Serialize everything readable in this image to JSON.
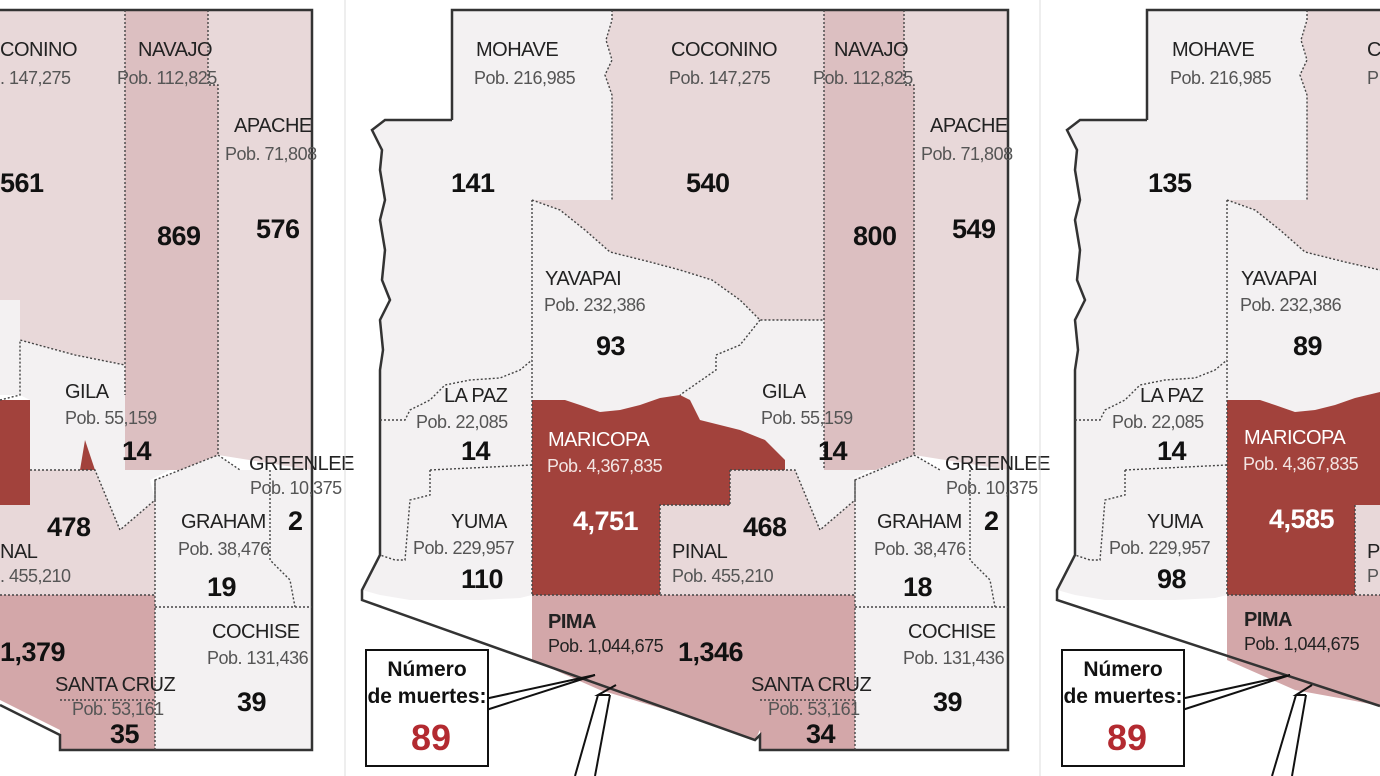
{
  "colors": {
    "very_light": "#f3f1f2",
    "light": "#e8d8d9",
    "medium": "#dcbfc1",
    "pima": "#d3a7a9",
    "maricopa": "#a2423c",
    "number_red": "#b32a30"
  },
  "counties": {
    "mohave": {
      "name": "MOHAVE",
      "pop": "Pob. 216,985"
    },
    "coconino": {
      "name": "COCONINO",
      "pop": "Pob. 147,275"
    },
    "navajo": {
      "name": "NAVAJO",
      "pop": "Pob. 112,825"
    },
    "apache": {
      "name": "APACHE",
      "pop": "Pob. 71,808"
    },
    "yavapai": {
      "name": "YAVAPAI",
      "pop": "Pob. 232,386"
    },
    "lapaz": {
      "name": "LA PAZ",
      "pop": "Pob. 22,085"
    },
    "gila": {
      "name": "GILA",
      "pop": "Pob. 55,159"
    },
    "maricopa": {
      "name": "MARICOPA",
      "pop": "Pob. 4,367,835"
    },
    "greenlee": {
      "name": "GREENLEE",
      "pop": "Pob. 10,375"
    },
    "yuma": {
      "name": "YUMA",
      "pop": "Pob. 229,957"
    },
    "graham": {
      "name": "GRAHAM",
      "pop": "Pob. 38,476"
    },
    "pinal": {
      "name": "PINAL",
      "pop": "Pob. 455,210"
    },
    "pima": {
      "name": "PIMA",
      "pop": "Pob. 1,044,675"
    },
    "cochise": {
      "name": "COCHISE",
      "pop": "Pob. 131,436"
    },
    "santacruz": {
      "name": "SANTA CRUZ",
      "pop": "Pob. 53,161"
    }
  },
  "panels": [
    {
      "deaths": {
        "coconino": "561",
        "navajo": "869",
        "apache": "576",
        "gila": "14",
        "greenlee": "2",
        "graham": "19",
        "pinal": "478",
        "pima": "1,379",
        "cochise": "39",
        "santacruz": "35"
      },
      "partial_labels": {
        "coconino": "CONINO",
        "coconino_pop": ". 147,275",
        "pinal": "NAL",
        "pinal_pop": ". 455,210"
      }
    },
    {
      "deaths": {
        "mohave": "141",
        "coconino": "540",
        "navajo": "800",
        "apache": "549",
        "yavapai": "93",
        "lapaz": "14",
        "gila": "14",
        "maricopa": "4,751",
        "greenlee": "2",
        "yuma": "110",
        "graham": "18",
        "pinal": "468",
        "pima": "1,346",
        "cochise": "39",
        "santacruz": "34"
      },
      "legend": {
        "line1": "Número",
        "line2": "de muertes:",
        "value": "89"
      }
    },
    {
      "deaths": {
        "mohave": "135",
        "yavapai": "89",
        "lapaz": "14",
        "maricopa": "4,585",
        "yuma": "98"
      },
      "partial_labels": {
        "coconino": "C",
        "coconino_pop": "P",
        "pinal": "P",
        "pinal_pop": "P"
      },
      "legend": {
        "line1": "Número",
        "line2": "de muertes:",
        "value": "89"
      }
    }
  ]
}
